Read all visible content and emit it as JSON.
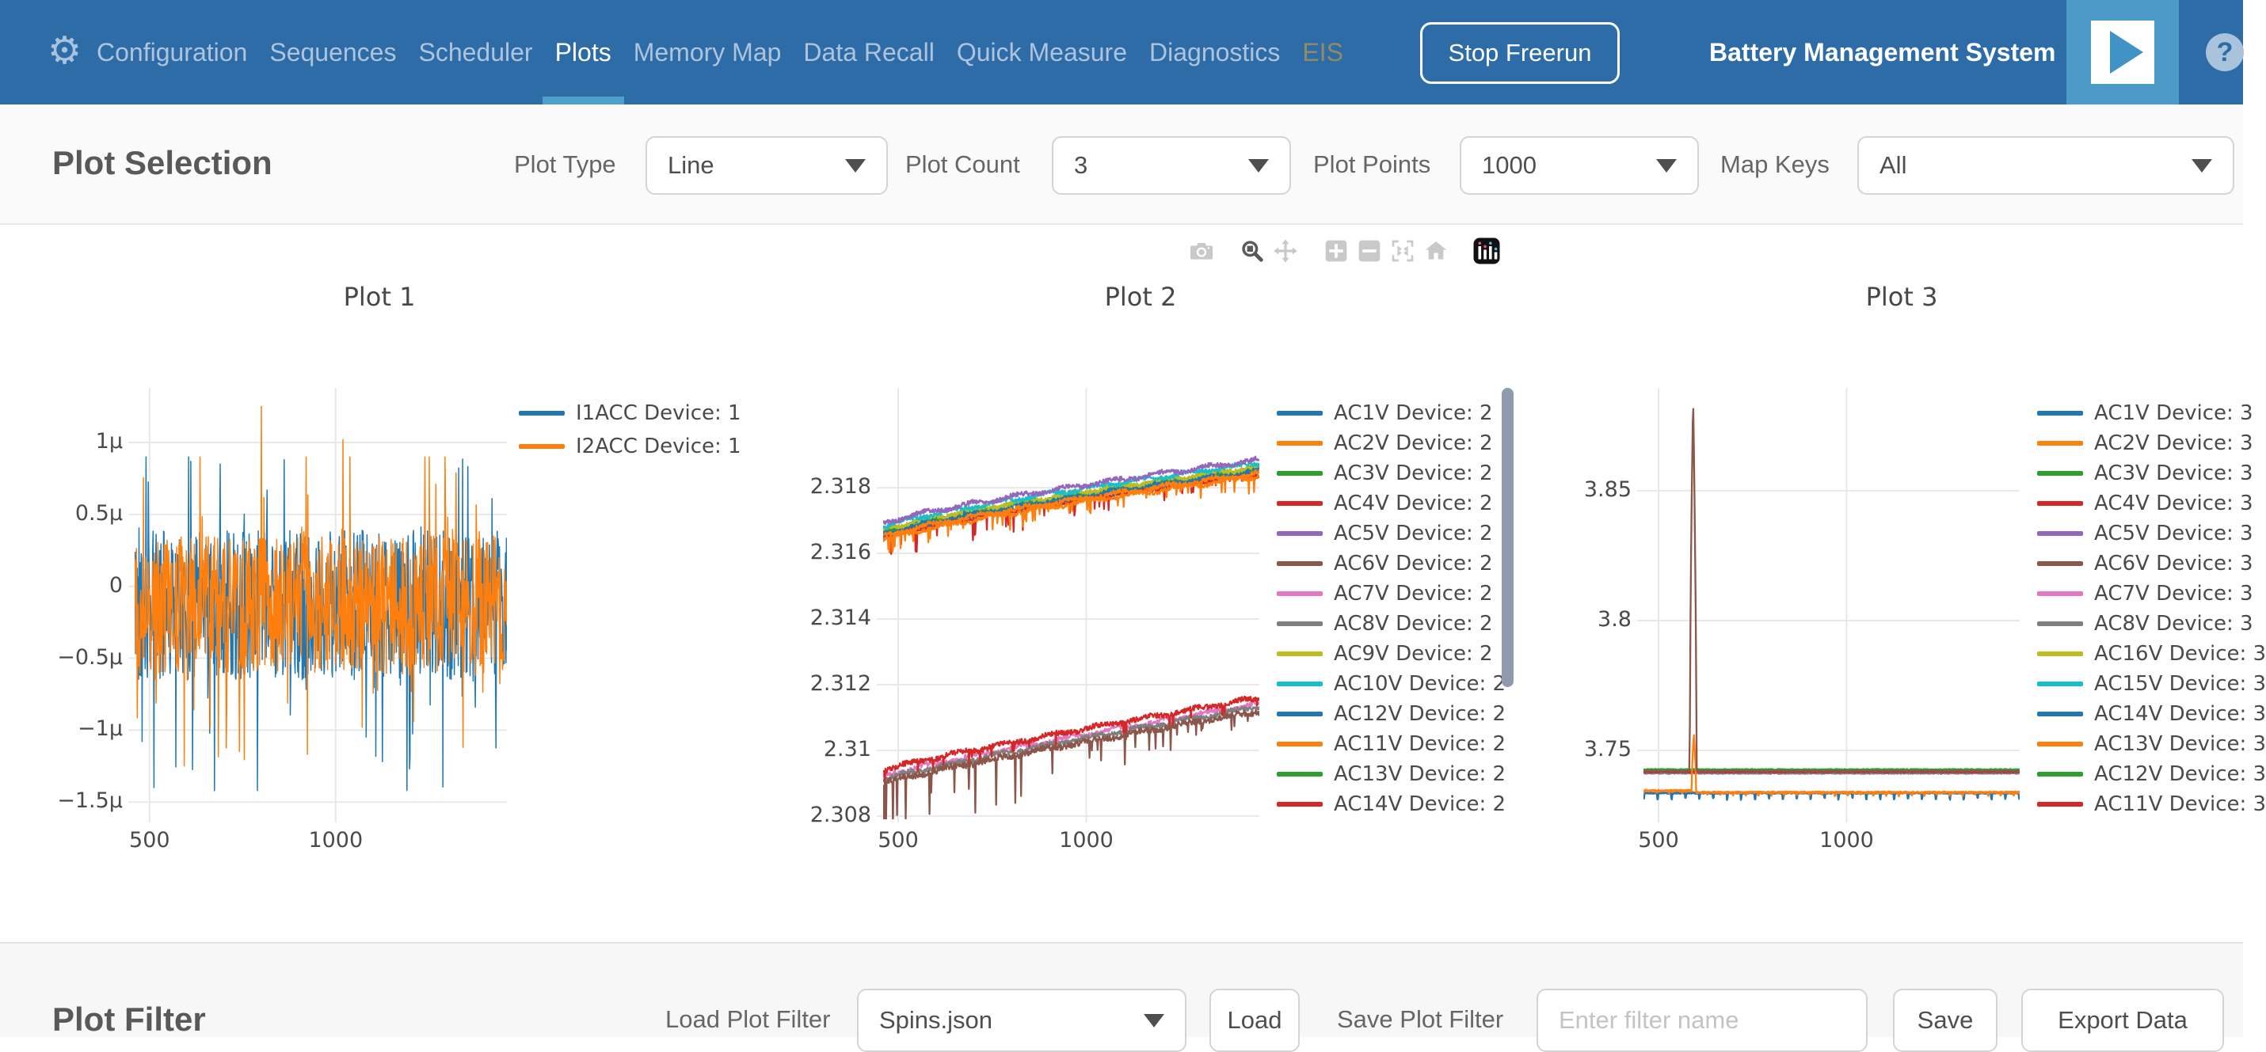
{
  "nav": {
    "app_title": "Battery Management System",
    "stop_button_label": "Stop Freerun",
    "items": [
      {
        "label": "Configuration",
        "state": "default"
      },
      {
        "label": "Sequences",
        "state": "default"
      },
      {
        "label": "Scheduler",
        "state": "default"
      },
      {
        "label": "Plots",
        "state": "active"
      },
      {
        "label": "Memory Map",
        "state": "default"
      },
      {
        "label": "Data Recall",
        "state": "default"
      },
      {
        "label": "Quick Measure",
        "state": "default"
      },
      {
        "label": "Diagnostics",
        "state": "default"
      },
      {
        "label": "EIS",
        "state": "disabled"
      }
    ],
    "icons": [
      "gear-icon",
      "play-icon",
      "help-icon"
    ],
    "colors": {
      "bar": "#2d6ca6",
      "item": "#aec4dd",
      "active_item": "#ffffff",
      "active_underline": "#4e9fc9",
      "disabled_item": "#918a66",
      "play_bg": "#4b9ac8"
    }
  },
  "plot_selection": {
    "title": "Plot Selection",
    "controls": [
      {
        "label": "Plot Type",
        "value": "Line"
      },
      {
        "label": "Plot Count",
        "value": "3"
      },
      {
        "label": "Plot Points",
        "value": "1000"
      },
      {
        "label": "Map Keys",
        "value": "All"
      }
    ]
  },
  "modebar": {
    "tools": [
      "camera",
      "zoom",
      "pan",
      "zoom-in",
      "zoom-out",
      "autoscale",
      "reset-axes",
      "plotly-logo"
    ],
    "active_tool": "zoom"
  },
  "chart_data": [
    {
      "type": "line",
      "title": "Plot 1",
      "x_range": [
        460,
        1460
      ],
      "x_ticks": [
        500,
        1000
      ],
      "y_unit": "µ",
      "ylim": [
        -1.62,
        1.38
      ],
      "y_ticks": [
        {
          "label": "1µ",
          "v": 1
        },
        {
          "label": "0.5µ",
          "v": 0.5
        },
        {
          "label": "0",
          "v": 0
        },
        {
          "label": "−0.5µ",
          "v": -0.5
        },
        {
          "label": "−1µ",
          "v": -1
        },
        {
          "label": "−1.5µ",
          "v": -1.5
        }
      ],
      "n_points": 850,
      "series": [
        {
          "name": "I1ACC Device: 1",
          "color": "#1f77b4",
          "gen": {
            "kind": "noise",
            "seed": 42,
            "base": -0.13,
            "amp": 0.52,
            "spike_prob": 0.1,
            "spike_amp": 0.5,
            "clip": [
              -1.42,
              0.9
            ],
            "z": 1,
            "events": [
              {
                "x": 512,
                "v": -1.4
              },
              {
                "x": 1198,
                "v": -1.27
              },
              {
                "x": 1125,
                "v": -1.22
              },
              {
                "x": 862,
                "v": 0.88
              },
              {
                "x": 690,
                "v": 0.85
              }
            ]
          }
        },
        {
          "name": "I2ACC Device: 1",
          "color": "#ff7f0e",
          "gen": {
            "kind": "noise",
            "seed": 77,
            "base": -0.13,
            "amp": 0.48,
            "spike_prob": 0.1,
            "spike_amp": 0.48,
            "clip": [
              -1.25,
              0.9
            ],
            "z": 2,
            "events": [
              {
                "x": 800,
                "v": 1.25
              },
              {
                "x": 1020,
                "v": 1.02
              },
              {
                "x": 742,
                "v": -1.15
              },
              {
                "x": 1342,
                "v": -1.12
              }
            ]
          }
        }
      ]
    },
    {
      "type": "line",
      "title": "Plot 2",
      "x_range": [
        460,
        1460
      ],
      "x_ticks": [
        500,
        1000
      ],
      "ylim": [
        2.3079,
        2.32104
      ],
      "y_ticks": [
        {
          "label": "2.318",
          "v": 2.318
        },
        {
          "label": "2.316",
          "v": 2.316
        },
        {
          "label": "2.314",
          "v": 2.314
        },
        {
          "label": "2.312",
          "v": 2.312
        },
        {
          "label": "2.31",
          "v": 2.31
        },
        {
          "label": "2.308",
          "v": 2.308
        }
      ],
      "n_points": 650,
      "legend_scrollbar": true,
      "series": [
        {
          "name": "AC1V Device: 2",
          "color": "#1f77b4",
          "gen": {
            "kind": "trend",
            "seed": 1,
            "start": 2.3166,
            "end": 2.31855,
            "pow": 0.8,
            "noise": 7e-05,
            "ripple": 5e-05,
            "z": 5
          }
        },
        {
          "name": "AC2V Device: 2",
          "color": "#ff7f0e",
          "gen": {
            "kind": "trend",
            "seed": 2,
            "start": 2.3164,
            "end": 2.31835,
            "pow": 0.8,
            "noise": 7e-05,
            "ripple": 5e-05,
            "spike_prob": 0.06,
            "spike_depth": 0.00045,
            "z": 6
          }
        },
        {
          "name": "AC3V Device: 2",
          "color": "#2ca02c",
          "gen": {
            "kind": "trend",
            "seed": 3,
            "start": 2.31664,
            "end": 2.31859,
            "pow": 0.8,
            "noise": 7e-05,
            "ripple": 5e-05,
            "z": 4
          }
        },
        {
          "name": "AC4V Device: 2",
          "color": "#d62728",
          "gen": {
            "kind": "trend",
            "seed": 4,
            "start": 2.31646,
            "end": 2.31841,
            "pow": 0.8,
            "noise": 7e-05,
            "ripple": 5e-05,
            "spike_prob": 0.05,
            "spike_depth": 0.0006,
            "taper": true,
            "z": 3
          }
        },
        {
          "name": "AC5V Device: 2",
          "color": "#9467bd",
          "gen": {
            "kind": "trend",
            "seed": 5,
            "start": 2.3169,
            "end": 2.31885,
            "pow": 0.8,
            "noise": 7e-05,
            "ripple": 5e-05,
            "z": 10
          }
        },
        {
          "name": "AC6V Device: 2",
          "color": "#8c564b",
          "gen": {
            "kind": "trend",
            "seed": 6,
            "start": 2.309,
            "end": 2.3112,
            "pow": 0.9,
            "noise": 9e-05,
            "ripple": 4e-05,
            "spike_prob": 0.05,
            "spike_depth": 0.0014,
            "taper": true,
            "z": 14,
            "events": [
              {
                "x": 468,
                "v": 2.3078
              },
              {
                "x": 486,
                "v": 2.3077
              },
              {
                "x": 520,
                "v": 2.3079
              },
              {
                "x": 705,
                "v": 2.3081
              },
              {
                "x": 812,
                "v": 2.3084
              }
            ]
          }
        },
        {
          "name": "AC7V Device: 2",
          "color": "#e377c2",
          "gen": {
            "kind": "trend",
            "seed": 7,
            "start": 2.30922,
            "end": 2.31142,
            "pow": 0.9,
            "noise": 7e-05,
            "ripple": 4e-05,
            "z": 11
          }
        },
        {
          "name": "AC8V Device: 2",
          "color": "#7f7f7f",
          "gen": {
            "kind": "trend",
            "seed": 8,
            "start": 2.30912,
            "end": 2.31132,
            "pow": 0.9,
            "noise": 7e-05,
            "ripple": 4e-05,
            "z": 12
          }
        },
        {
          "name": "AC9V Device: 2",
          "color": "#bcbd22",
          "gen": {
            "kind": "trend",
            "seed": 9,
            "start": 2.3167,
            "end": 2.31865,
            "pow": 0.8,
            "noise": 7e-05,
            "ripple": 5e-05,
            "z": 7
          }
        },
        {
          "name": "AC10V Device: 2",
          "color": "#17becf",
          "gen": {
            "kind": "trend",
            "seed": 10,
            "start": 2.3168,
            "end": 2.31875,
            "pow": 0.8,
            "noise": 7e-05,
            "ripple": 5e-05,
            "z": 9
          }
        },
        {
          "name": "AC12V Device: 2",
          "color": "#1f77b4",
          "gen": {
            "kind": "trend",
            "seed": 12,
            "start": 2.31654,
            "end": 2.31849,
            "pow": 0.8,
            "noise": 7e-05,
            "ripple": 5e-05,
            "z": 2
          }
        },
        {
          "name": "AC11V Device: 2",
          "color": "#ff7f0e",
          "gen": {
            "kind": "trend",
            "seed": 11,
            "start": 2.3165,
            "end": 2.31845,
            "pow": 0.8,
            "noise": 7e-05,
            "ripple": 5e-05,
            "z": 8
          }
        },
        {
          "name": "AC13V Device: 2",
          "color": "#2ca02c",
          "gen": {
            "kind": "trend",
            "seed": 13,
            "start": 2.3166,
            "end": 2.31855,
            "pow": 0.8,
            "noise": 7e-05,
            "ripple": 5e-05,
            "z": 1
          }
        },
        {
          "name": "AC14V Device: 2",
          "color": "#d62728",
          "gen": {
            "kind": "trend",
            "seed": 14,
            "start": 2.3094,
            "end": 2.3116,
            "pow": 0.9,
            "noise": 8e-05,
            "ripple": 4e-05,
            "spike_prob": 0.03,
            "spike_depth": 0.0005,
            "z": 13
          }
        }
      ]
    },
    {
      "type": "line",
      "title": "Plot 3",
      "x_range": [
        460,
        1460
      ],
      "x_ticks": [
        500,
        1000
      ],
      "ylim": [
        3.7235,
        3.8896
      ],
      "y_ticks": [
        {
          "label": "3.85",
          "v": 3.85
        },
        {
          "label": "3.8",
          "v": 3.8
        },
        {
          "label": "3.75",
          "v": 3.75
        }
      ],
      "n_points": 650,
      "series": [
        {
          "name": "AC1V Device: 3",
          "color": "#1f77b4",
          "gen": {
            "kind": "flat",
            "seed": 21,
            "level": 3.7335,
            "noise": 0.0002,
            "teeth": {
              "period": 24,
              "len": 2,
              "depth": -0.0026
            },
            "z": 12
          }
        },
        {
          "name": "AC2V Device: 3",
          "color": "#ff7f0e",
          "gen": {
            "kind": "flat",
            "seed": 22,
            "level": 3.7347,
            "level2": 3.7337,
            "step_x": 600,
            "noise": 0.0002,
            "teeth": {
              "period": 22,
              "len": 2,
              "depth": -0.0012
            },
            "spike": {
              "x": 594,
              "v": 3.756,
              "w": 6
            },
            "z": 13
          }
        },
        {
          "name": "AC3V Device: 3",
          "color": "#2ca02c",
          "gen": {
            "kind": "flat",
            "seed": 23,
            "level": 3.7427,
            "noise": 0.0002,
            "z": 10
          }
        },
        {
          "name": "AC4V Device: 3",
          "color": "#d62728",
          "gen": {
            "kind": "flat",
            "seed": 24,
            "level": 3.7418,
            "noise": 0.0002,
            "z": 3
          }
        },
        {
          "name": "AC5V Device: 3",
          "color": "#9467bd",
          "gen": {
            "kind": "flat",
            "seed": 25,
            "level": 3.7416,
            "noise": 0.0002,
            "z": 2
          }
        },
        {
          "name": "AC6V Device: 3",
          "color": "#8c564b",
          "gen": {
            "kind": "flat",
            "seed": 26,
            "level": 3.7421,
            "noise": 0.00018,
            "spike": {
              "x": 592,
              "v": 3.8865,
              "w": 9
            },
            "z": 14
          }
        },
        {
          "name": "AC7V Device: 3",
          "color": "#e377c2",
          "gen": {
            "kind": "flat",
            "seed": 27,
            "level": 3.7414,
            "noise": 0.0002,
            "z": 4
          }
        },
        {
          "name": "AC8V Device: 3",
          "color": "#7f7f7f",
          "gen": {
            "kind": "flat",
            "seed": 28,
            "level": 3.7413,
            "noise": 0.0002,
            "z": 5
          }
        },
        {
          "name": "AC16V Device: 3",
          "color": "#bcbd22",
          "gen": {
            "kind": "flat",
            "seed": 29,
            "level": 3.7423,
            "noise": 0.0002,
            "z": 6
          }
        },
        {
          "name": "AC15V Device: 3",
          "color": "#17becf",
          "gen": {
            "kind": "flat",
            "seed": 30,
            "level": 3.7425,
            "noise": 0.0002,
            "z": 7
          }
        },
        {
          "name": "AC14V Device: 3",
          "color": "#1f77b4",
          "gen": {
            "kind": "flat",
            "seed": 31,
            "level": 3.7412,
            "noise": 0.0002,
            "z": 1
          }
        },
        {
          "name": "AC13V Device: 3",
          "color": "#ff7f0e",
          "gen": {
            "kind": "flat",
            "seed": 32,
            "level": 3.734,
            "noise": 0.0002,
            "z": 11
          }
        },
        {
          "name": "AC12V Device: 3",
          "color": "#2ca02c",
          "gen": {
            "kind": "flat",
            "seed": 33,
            "level": 3.7419,
            "noise": 0.0002,
            "z": 8
          }
        },
        {
          "name": "AC11V Device: 3",
          "color": "#d62728",
          "gen": {
            "kind": "flat",
            "seed": 34,
            "level": 3.7417,
            "noise": 0.0002,
            "z": 9
          }
        }
      ]
    }
  ],
  "plot_filter": {
    "title": "Plot Filter",
    "load_label": "Load Plot Filter",
    "load_value": "Spins.json",
    "load_button": "Load",
    "save_label": "Save Plot Filter",
    "save_placeholder": "Enter filter name",
    "save_button": "Save",
    "export_button": "Export Data"
  }
}
